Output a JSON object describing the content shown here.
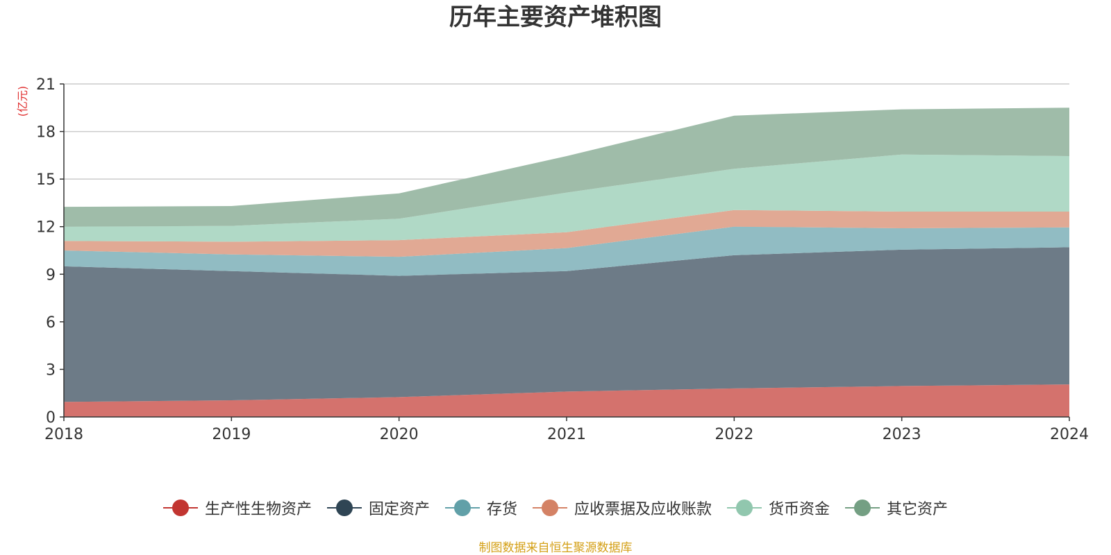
{
  "chart_data": {
    "type": "area",
    "title": "历年主要资产堆积图",
    "unit_label": "(亿元)",
    "x": [
      "2018",
      "2019",
      "2020",
      "2021",
      "2022",
      "2023",
      "2024"
    ],
    "ylim": [
      0,
      21
    ],
    "yticks": [
      0,
      3,
      6,
      9,
      12,
      15,
      18,
      21
    ],
    "stacked": true,
    "grid": true,
    "legend_position": "bottom",
    "series": [
      {
        "name": "生产性生物资产",
        "color": "#c23531",
        "fill": "#d4726d",
        "values": [
          0.95,
          1.05,
          1.25,
          1.6,
          1.8,
          1.95,
          2.05
        ]
      },
      {
        "name": "固定资产",
        "color": "#2f4554",
        "fill": "#6d7b87",
        "values": [
          8.55,
          8.15,
          7.65,
          7.6,
          8.4,
          8.6,
          8.65
        ]
      },
      {
        "name": "存货",
        "color": "#61a0a8",
        "fill": "#91bcc3",
        "values": [
          1.0,
          1.05,
          1.2,
          1.45,
          1.8,
          1.35,
          1.25
        ]
      },
      {
        "name": "应收票据及应收账款",
        "color": "#d48265",
        "fill": "#e1a994",
        "values": [
          0.6,
          0.8,
          1.05,
          1.0,
          1.05,
          1.05,
          1.0
        ]
      },
      {
        "name": "货币资金",
        "color": "#91c7ae",
        "fill": "#b0d9c6",
        "values": [
          0.9,
          1.0,
          1.35,
          2.5,
          2.6,
          3.6,
          3.5
        ]
      },
      {
        "name": "其它资产",
        "color": "#749f83",
        "fill": "#9fbca9",
        "values": [
          1.25,
          1.25,
          1.6,
          2.3,
          3.35,
          2.85,
          3.05
        ]
      }
    ]
  },
  "source_note": "制图数据来自恒生聚源数据库",
  "colors": {
    "axis": "#333333",
    "grid": "#cccccc",
    "unit_label": "#e03030",
    "source_note": "#d4a017"
  }
}
